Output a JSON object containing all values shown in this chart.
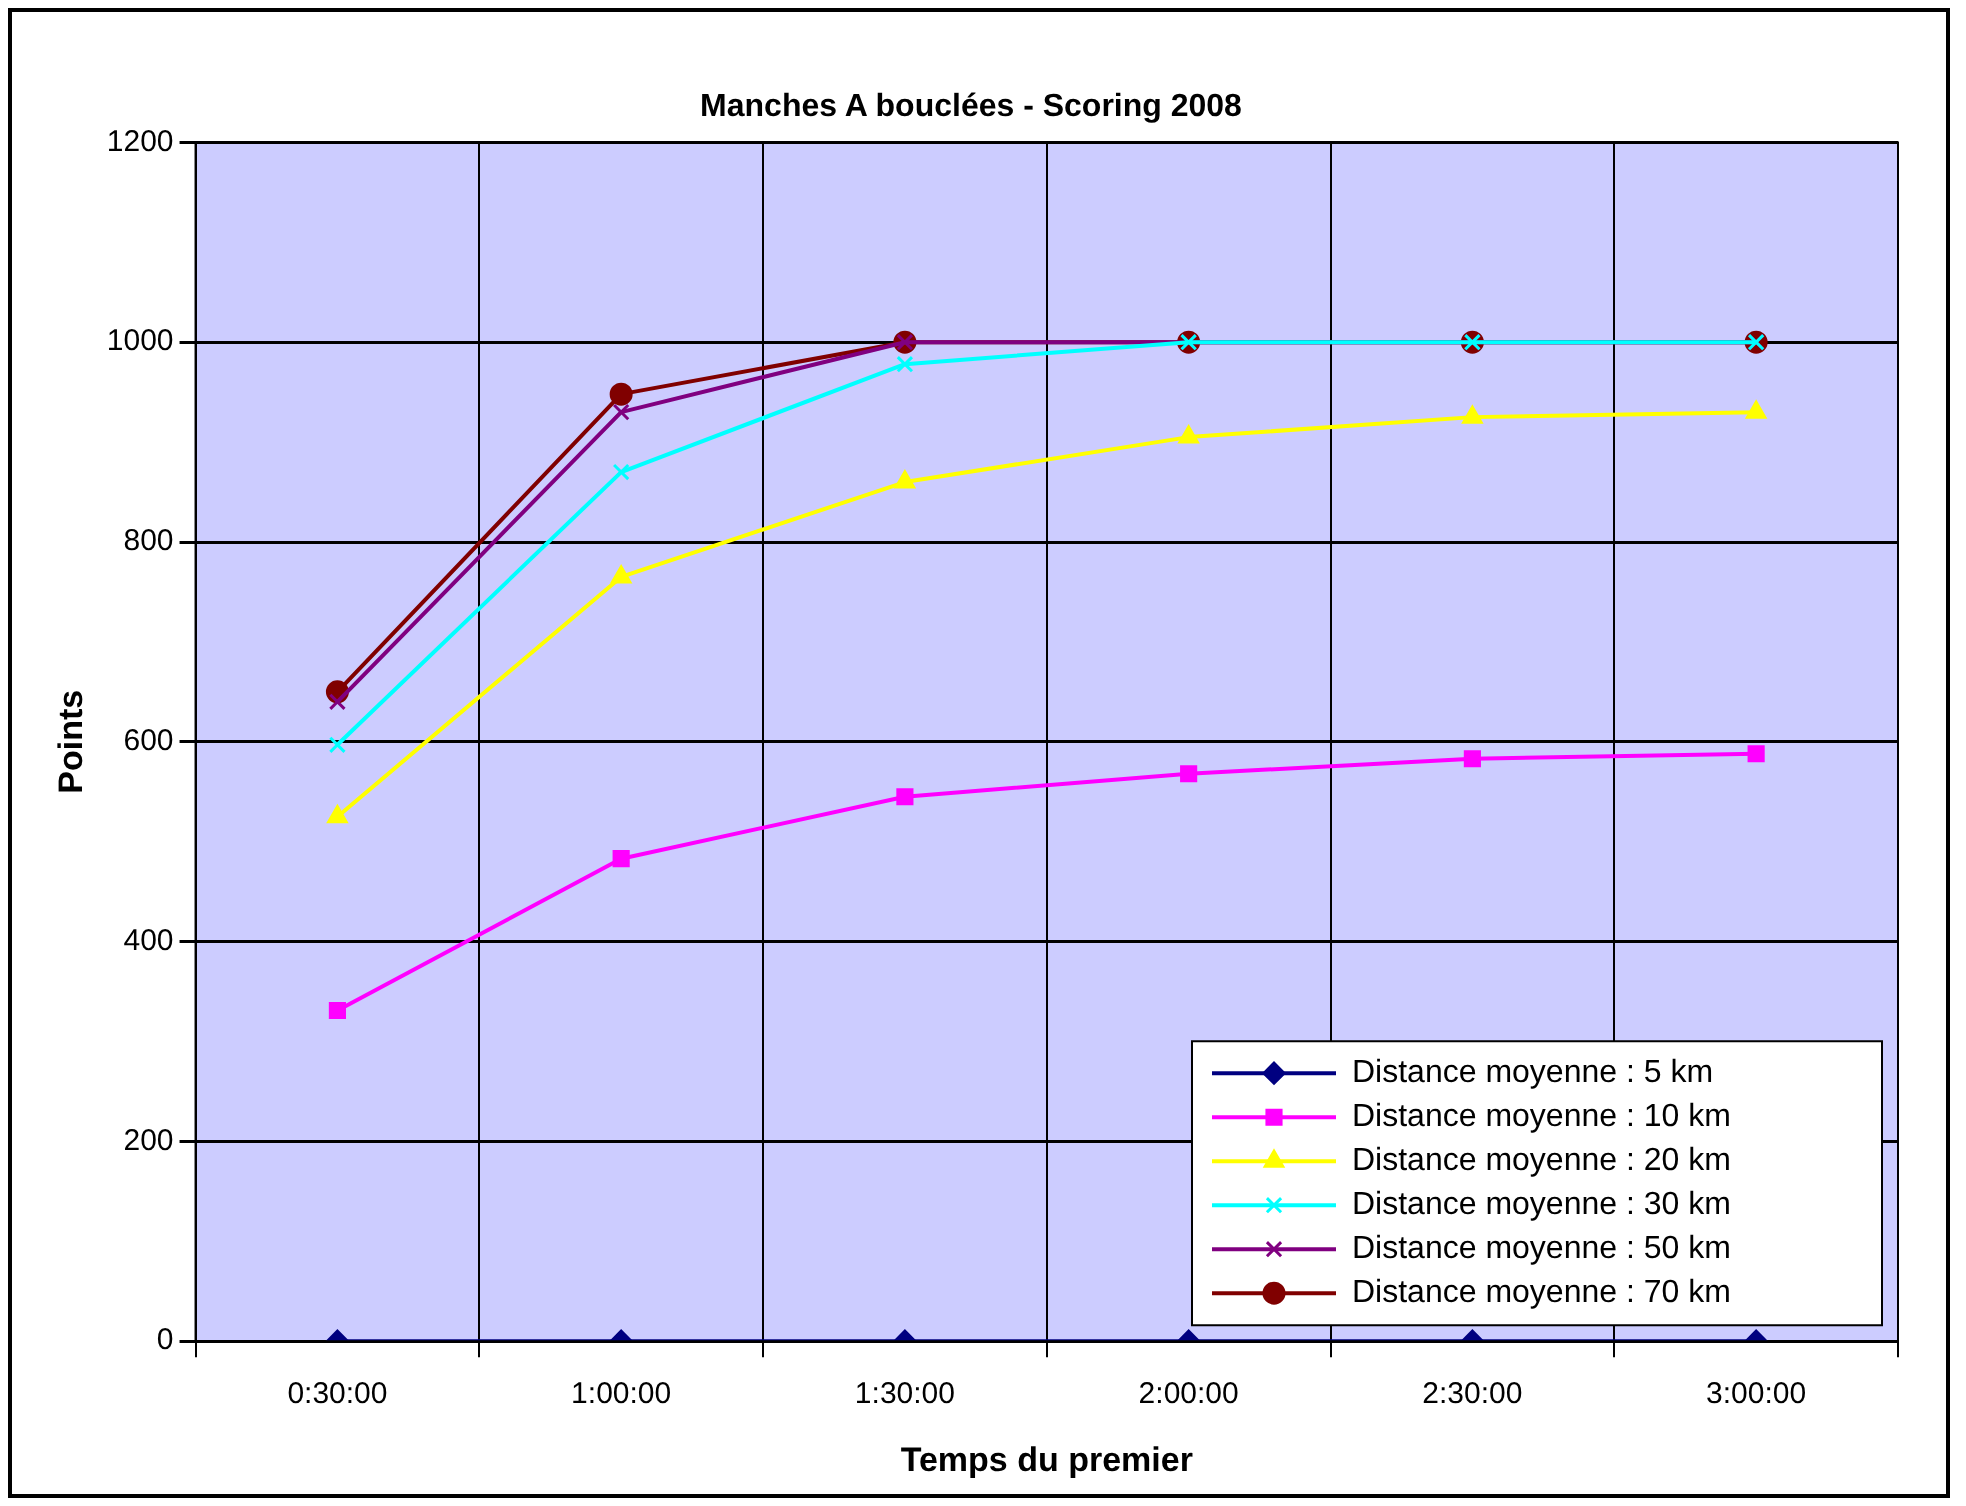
{
  "chart_data": {
    "type": "line",
    "title": "Manches A bouclées - Scoring 2008",
    "xlabel": "Temps du premier",
    "ylabel": "Points",
    "categories": [
      "0:30:00",
      "1:00:00",
      "1:30:00",
      "2:00:00",
      "2:30:00",
      "3:00:00"
    ],
    "ylim": [
      0,
      1200
    ],
    "yticks": [
      0,
      200,
      400,
      600,
      800,
      1000,
      1200
    ],
    "grid": true,
    "legend": "bottom right",
    "line_style": "solid",
    "series": [
      {
        "name": "Distance moyenne : 5 km",
        "color": "#000080",
        "marker": "diamond",
        "values": [
          0,
          0,
          0,
          0,
          0,
          0
        ]
      },
      {
        "name": "Distance moyenne : 10 km",
        "color": "#ff00ff",
        "marker": "square",
        "values": [
          331,
          483,
          545,
          568,
          583,
          588
        ]
      },
      {
        "name": "Distance moyenne : 20 km",
        "color": "#ffff00",
        "marker": "triangle",
        "values": [
          525,
          765,
          860,
          905,
          925,
          930
        ]
      },
      {
        "name": "Distance moyenne : 30 km",
        "color": "#00ffff",
        "marker": "cross",
        "values": [
          597,
          870,
          978,
          1000,
          1000,
          1000
        ]
      },
      {
        "name": "Distance moyenne : 50 km",
        "color": "#800080",
        "marker": "cross",
        "values": [
          640,
          930,
          1000,
          1000,
          1000,
          1000
        ]
      },
      {
        "name": "Distance moyenne : 70 km",
        "color": "#800000",
        "marker": "circle",
        "values": [
          650,
          948,
          1000,
          1000,
          1000,
          1000
        ]
      }
    ]
  }
}
